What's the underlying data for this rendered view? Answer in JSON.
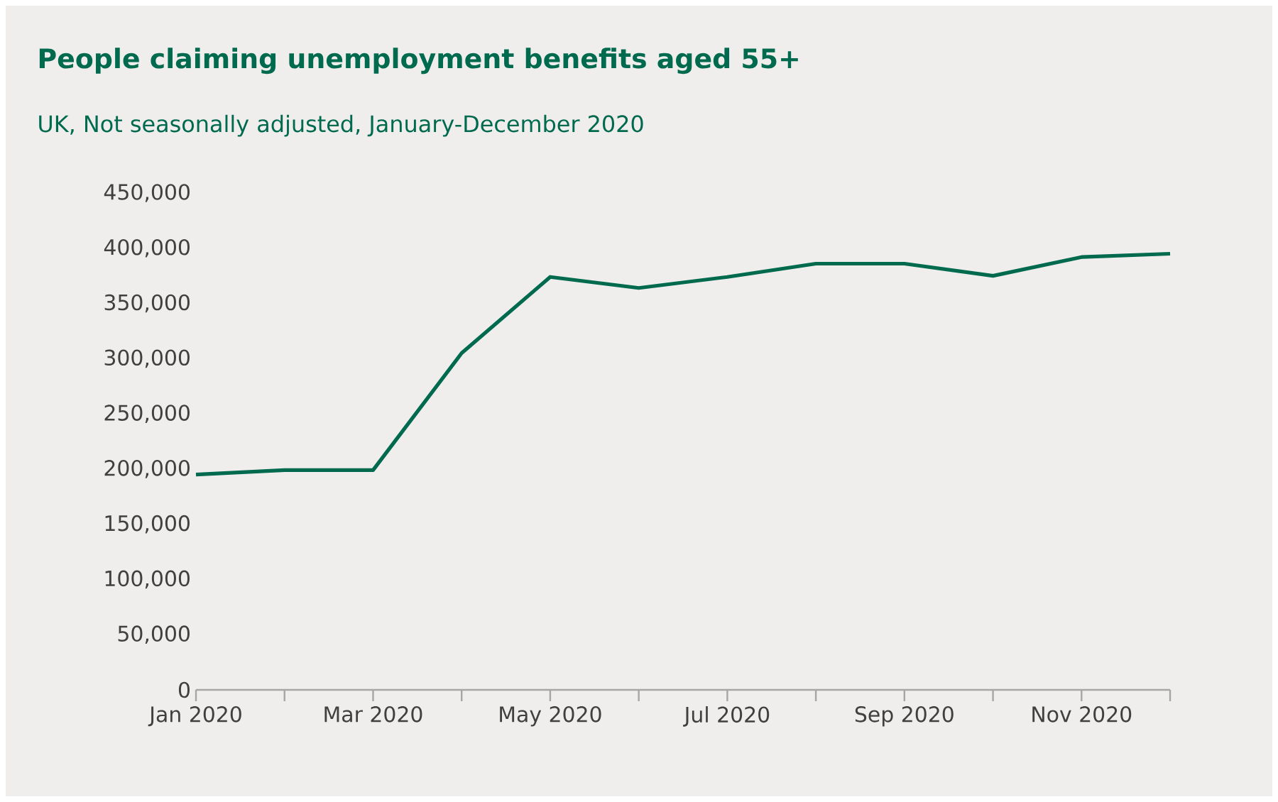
{
  "chart_data": {
    "type": "line",
    "title": "People claiming unemployment benefits aged 55+",
    "subtitle": "UK, Not seasonally adjusted, January-December 2020",
    "categories": [
      "Jan 2020",
      null,
      "Mar 2020",
      null,
      "May 2020",
      null,
      "Jul 2020",
      null,
      "Sep 2020",
      null,
      "Nov 2020",
      null
    ],
    "series": [
      {
        "color": "#006a4e",
        "values": [
          195000,
          199000,
          199000,
          305000,
          374000,
          364000,
          374000,
          386000,
          386000,
          375000,
          392000,
          395000
        ]
      }
    ],
    "ylim": [
      0,
      450000
    ],
    "yticks": [
      0,
      {
        "value": 50000,
        "label": "50,000"
      },
      {
        "value": 100000,
        "label": "100,000"
      },
      {
        "value": 150000,
        "label": "150,000"
      },
      {
        "value": 200000,
        "label": "200,000"
      },
      {
        "value": 250000,
        "label": "250,000"
      },
      {
        "value": 300000,
        "label": "300,000"
      },
      {
        "value": 350000,
        "label": "350,000"
      },
      {
        "value": 400000,
        "label": "400,000"
      },
      {
        "value": 450000,
        "label": "450,000"
      }
    ],
    "marker": "none",
    "line_style": "solid"
  }
}
